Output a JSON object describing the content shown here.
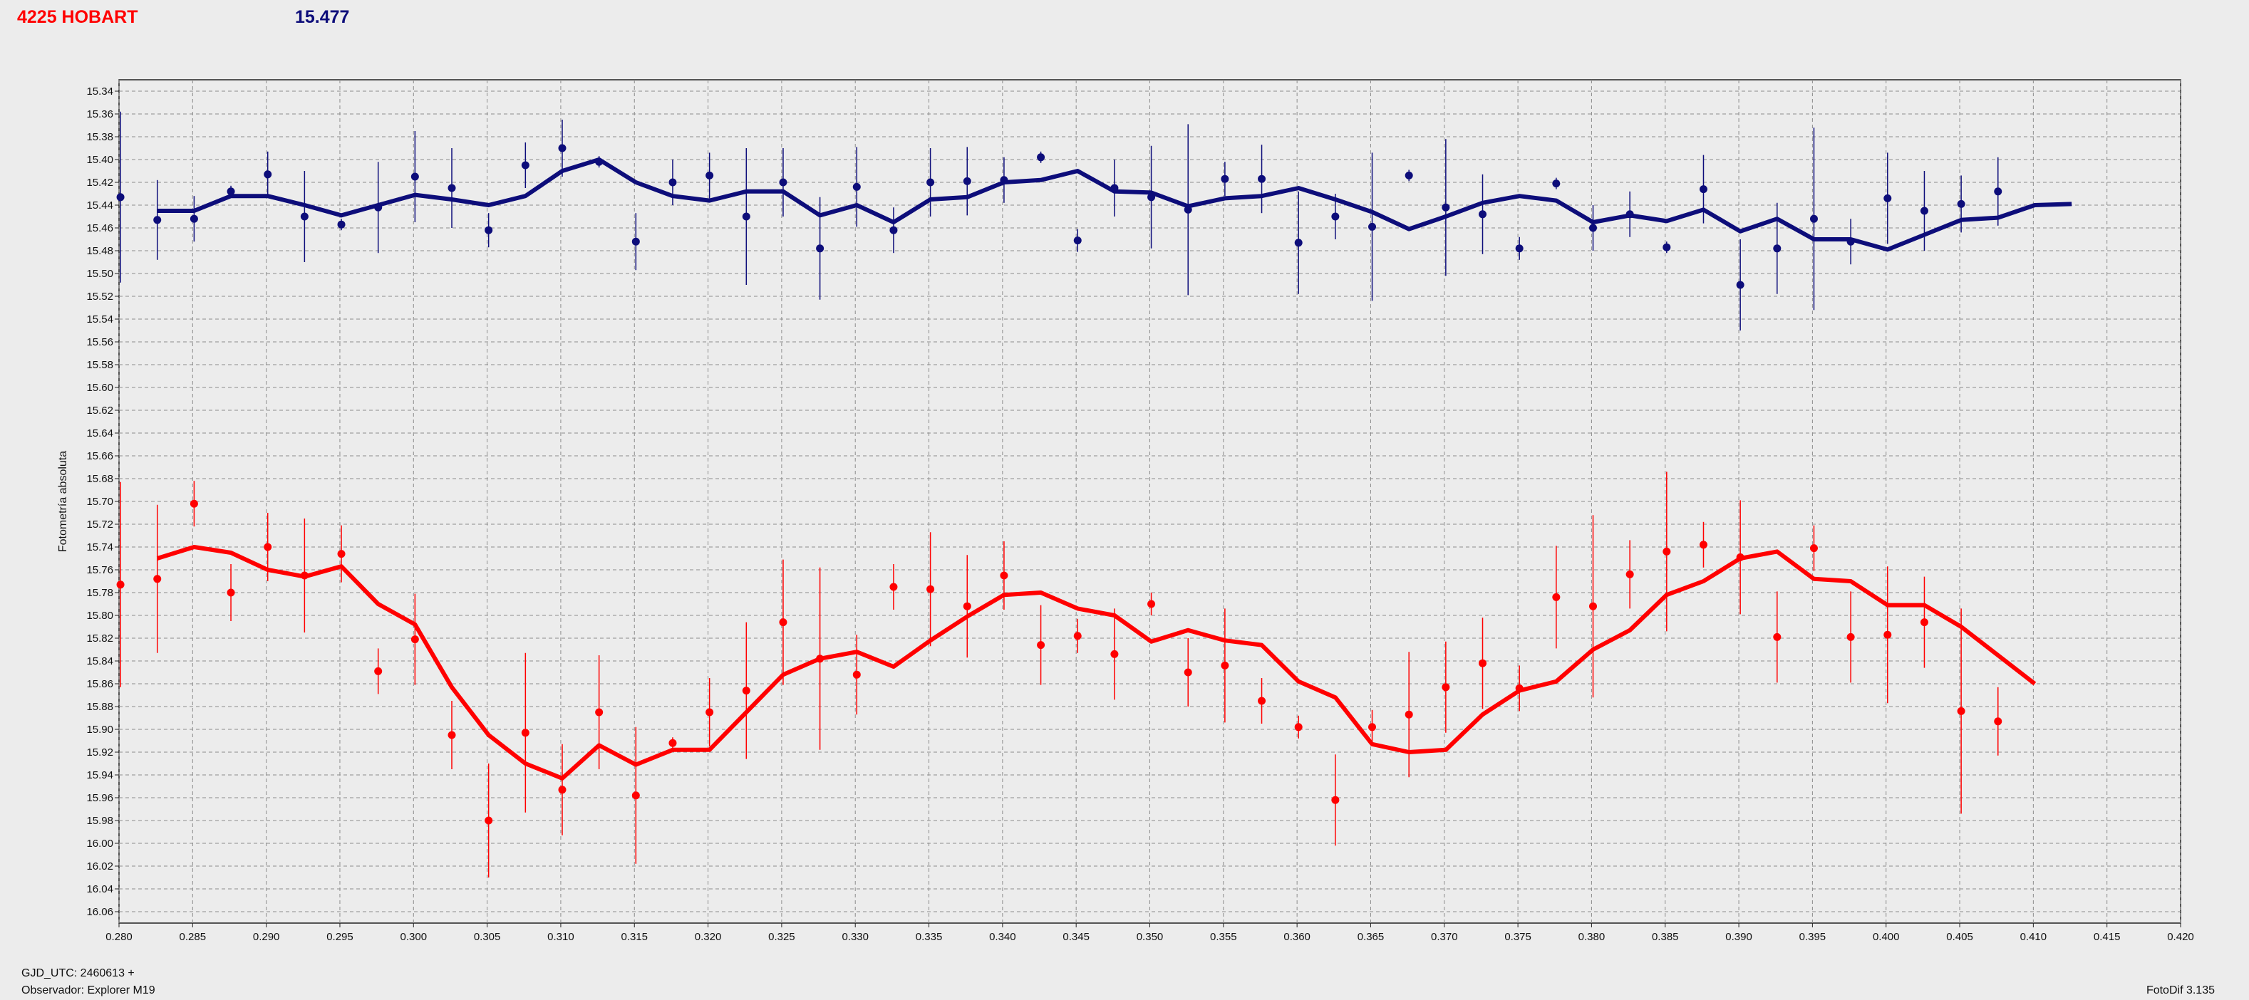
{
  "header": {
    "title": "4225 HOBART",
    "value": "15.477"
  },
  "footer": {
    "gjd": "GJD_UTC: 2460613 +",
    "observer": "Observador: Explorer M19",
    "version": "FotoDif 3.135"
  },
  "colors": {
    "series1": "#0d0d7a",
    "series2": "#ff0000",
    "grid": "#8c8c8c",
    "plot_bg": "#ececec"
  },
  "chart_data": {
    "type": "scatter",
    "ylabel": "Fotometría absoluta",
    "xlabel": "",
    "xlim": [
      0.28,
      0.42
    ],
    "ylim": [
      16.07,
      15.33
    ],
    "y_inverted": true,
    "grid": true,
    "x_ticks": [
      "0.280",
      "0.285",
      "0.290",
      "0.295",
      "0.300",
      "0.305",
      "0.310",
      "0.315",
      "0.320",
      "0.325",
      "0.330",
      "0.335",
      "0.340",
      "0.345",
      "0.350",
      "0.355",
      "0.360",
      "0.365",
      "0.370",
      "0.375",
      "0.380",
      "0.385",
      "0.390",
      "0.395",
      "0.400",
      "0.405",
      "0.410",
      "0.415",
      "0.420"
    ],
    "y_ticks": [
      "15.34",
      "15.36",
      "15.38",
      "15.40",
      "15.42",
      "15.44",
      "15.46",
      "15.48",
      "15.50",
      "15.52",
      "15.54",
      "15.56",
      "15.58",
      "15.60",
      "15.62",
      "15.64",
      "15.66",
      "15.68",
      "15.70",
      "15.72",
      "15.74",
      "15.76",
      "15.78",
      "15.80",
      "15.82",
      "15.84",
      "15.86",
      "15.88",
      "15.90",
      "15.92",
      "15.94",
      "15.96",
      "15.98",
      "16.00",
      "16.02",
      "16.04",
      "16.06"
    ],
    "series": [
      {
        "points": [
          {
            "x": 0.2801,
            "y": 15.433,
            "err": 0.075
          },
          {
            "x": 0.2826,
            "y": 15.453,
            "err": 0.035
          },
          {
            "x": 0.2851,
            "y": 15.452,
            "err": 0.02
          },
          {
            "x": 0.2876,
            "y": 15.428,
            "err": 0.005
          },
          {
            "x": 0.2901,
            "y": 15.413,
            "err": 0.02
          },
          {
            "x": 0.2926,
            "y": 15.45,
            "err": 0.04
          },
          {
            "x": 0.2951,
            "y": 15.457,
            "err": 0.005
          },
          {
            "x": 0.2976,
            "y": 15.442,
            "err": 0.04
          },
          {
            "x": 0.3001,
            "y": 15.415,
            "err": 0.04
          },
          {
            "x": 0.3026,
            "y": 15.425,
            "err": 0.035
          },
          {
            "x": 0.3051,
            "y": 15.462,
            "err": 0.015
          },
          {
            "x": 0.3076,
            "y": 15.405,
            "err": 0.02
          },
          {
            "x": 0.3101,
            "y": 15.39,
            "err": 0.025
          },
          {
            "x": 0.3126,
            "y": 15.402,
            "err": 0.005
          },
          {
            "x": 0.3151,
            "y": 15.472,
            "err": 0.025
          },
          {
            "x": 0.3176,
            "y": 15.42,
            "err": 0.02
          },
          {
            "x": 0.3201,
            "y": 15.414,
            "err": 0.02
          },
          {
            "x": 0.3226,
            "y": 15.45,
            "err": 0.06
          },
          {
            "x": 0.3251,
            "y": 15.42,
            "err": 0.03
          },
          {
            "x": 0.3276,
            "y": 15.478,
            "err": 0.045
          },
          {
            "x": 0.3301,
            "y": 15.424,
            "err": 0.035
          },
          {
            "x": 0.3326,
            "y": 15.462,
            "err": 0.02
          },
          {
            "x": 0.3351,
            "y": 15.42,
            "err": 0.03
          },
          {
            "x": 0.3376,
            "y": 15.419,
            "err": 0.03
          },
          {
            "x": 0.3401,
            "y": 15.418,
            "err": 0.02
          },
          {
            "x": 0.3426,
            "y": 15.398,
            "err": 0.005
          },
          {
            "x": 0.3451,
            "y": 15.471,
            "err": 0.01
          },
          {
            "x": 0.3476,
            "y": 15.425,
            "err": 0.025
          },
          {
            "x": 0.3501,
            "y": 15.433,
            "err": 0.045
          },
          {
            "x": 0.3526,
            "y": 15.444,
            "err": 0.075
          },
          {
            "x": 0.3551,
            "y": 15.417,
            "err": 0.015
          },
          {
            "x": 0.3576,
            "y": 15.417,
            "err": 0.03
          },
          {
            "x": 0.3601,
            "y": 15.473,
            "err": 0.045
          },
          {
            "x": 0.3626,
            "y": 15.45,
            "err": 0.02
          },
          {
            "x": 0.3651,
            "y": 15.459,
            "err": 0.065
          },
          {
            "x": 0.3676,
            "y": 15.414,
            "err": 0.005
          },
          {
            "x": 0.3701,
            "y": 15.442,
            "err": 0.06
          },
          {
            "x": 0.3726,
            "y": 15.448,
            "err": 0.035
          },
          {
            "x": 0.3751,
            "y": 15.478,
            "err": 0.01
          },
          {
            "x": 0.3776,
            "y": 15.421,
            "err": 0.005
          },
          {
            "x": 0.3801,
            "y": 15.46,
            "err": 0.02
          },
          {
            "x": 0.3826,
            "y": 15.448,
            "err": 0.02
          },
          {
            "x": 0.3851,
            "y": 15.477,
            "err": 0.005
          },
          {
            "x": 0.3876,
            "y": 15.426,
            "err": 0.03
          },
          {
            "x": 0.3901,
            "y": 15.51,
            "err": 0.04
          },
          {
            "x": 0.3926,
            "y": 15.478,
            "err": 0.04
          },
          {
            "x": 0.3951,
            "y": 15.452,
            "err": 0.08
          },
          {
            "x": 0.3976,
            "y": 15.472,
            "err": 0.02
          },
          {
            "x": 0.4001,
            "y": 15.434,
            "err": 0.04
          },
          {
            "x": 0.4026,
            "y": 15.445,
            "err": 0.035
          },
          {
            "x": 0.4051,
            "y": 15.439,
            "err": 0.025
          },
          {
            "x": 0.4076,
            "y": 15.428,
            "err": 0.03
          }
        ],
        "trend": [
          [
            0.2826,
            15.445
          ],
          [
            0.2851,
            15.445
          ],
          [
            0.2876,
            15.432
          ],
          [
            0.2901,
            15.432
          ],
          [
            0.2926,
            15.44
          ],
          [
            0.2951,
            15.449
          ],
          [
            0.2976,
            15.44
          ],
          [
            0.3001,
            15.431
          ],
          [
            0.3026,
            15.435
          ],
          [
            0.3051,
            15.44
          ],
          [
            0.3076,
            15.432
          ],
          [
            0.3101,
            15.41
          ],
          [
            0.3126,
            15.4
          ],
          [
            0.3151,
            15.42
          ],
          [
            0.3176,
            15.432
          ],
          [
            0.3201,
            15.436
          ],
          [
            0.3226,
            15.428
          ],
          [
            0.3251,
            15.428
          ],
          [
            0.3276,
            15.449
          ],
          [
            0.3301,
            15.44
          ],
          [
            0.3326,
            15.455
          ],
          [
            0.3351,
            15.435
          ],
          [
            0.3376,
            15.433
          ],
          [
            0.3401,
            15.42
          ],
          [
            0.3426,
            15.418
          ],
          [
            0.3451,
            15.41
          ],
          [
            0.3476,
            15.428
          ],
          [
            0.3501,
            15.429
          ],
          [
            0.3526,
            15.441
          ],
          [
            0.3551,
            15.434
          ],
          [
            0.3576,
            15.432
          ],
          [
            0.3601,
            15.425
          ],
          [
            0.3626,
            15.435
          ],
          [
            0.3651,
            15.446
          ],
          [
            0.3676,
            15.461
          ],
          [
            0.3701,
            15.45
          ],
          [
            0.3726,
            15.438
          ],
          [
            0.3751,
            15.432
          ],
          [
            0.3776,
            15.436
          ],
          [
            0.3801,
            15.455
          ],
          [
            0.3826,
            15.449
          ],
          [
            0.3851,
            15.454
          ],
          [
            0.3876,
            15.444
          ],
          [
            0.3901,
            15.463
          ],
          [
            0.3926,
            15.452
          ],
          [
            0.3951,
            15.47
          ],
          [
            0.3976,
            15.47
          ],
          [
            0.4001,
            15.479
          ],
          [
            0.4026,
            15.466
          ],
          [
            0.4051,
            15.453
          ],
          [
            0.4076,
            15.451
          ],
          [
            0.4101,
            15.44
          ],
          [
            0.4126,
            15.439
          ]
        ]
      },
      {
        "points": [
          {
            "x": 0.2801,
            "y": 15.773,
            "err": 0.09
          },
          {
            "x": 0.2826,
            "y": 15.768,
            "err": 0.065
          },
          {
            "x": 0.2851,
            "y": 15.702,
            "err": 0.02
          },
          {
            "x": 0.2876,
            "y": 15.78,
            "err": 0.025
          },
          {
            "x": 0.2901,
            "y": 15.74,
            "err": 0.03
          },
          {
            "x": 0.2926,
            "y": 15.765,
            "err": 0.05
          },
          {
            "x": 0.2951,
            "y": 15.746,
            "err": 0.025
          },
          {
            "x": 0.2976,
            "y": 15.849,
            "err": 0.02
          },
          {
            "x": 0.3001,
            "y": 15.821,
            "err": 0.04
          },
          {
            "x": 0.3026,
            "y": 15.905,
            "err": 0.03
          },
          {
            "x": 0.3051,
            "y": 15.98,
            "err": 0.05
          },
          {
            "x": 0.3076,
            "y": 15.903,
            "err": 0.07
          },
          {
            "x": 0.3101,
            "y": 15.953,
            "err": 0.04
          },
          {
            "x": 0.3126,
            "y": 15.885,
            "err": 0.05
          },
          {
            "x": 0.3151,
            "y": 15.958,
            "err": 0.06
          },
          {
            "x": 0.3176,
            "y": 15.912,
            "err": 0.005
          },
          {
            "x": 0.3201,
            "y": 15.885,
            "err": 0.03
          },
          {
            "x": 0.3226,
            "y": 15.866,
            "err": 0.06
          },
          {
            "x": 0.3251,
            "y": 15.806,
            "err": 0.055
          },
          {
            "x": 0.3276,
            "y": 15.838,
            "err": 0.08
          },
          {
            "x": 0.3301,
            "y": 15.852,
            "err": 0.035
          },
          {
            "x": 0.3326,
            "y": 15.775,
            "err": 0.02
          },
          {
            "x": 0.3351,
            "y": 15.777,
            "err": 0.05
          },
          {
            "x": 0.3376,
            "y": 15.792,
            "err": 0.045
          },
          {
            "x": 0.3401,
            "y": 15.765,
            "err": 0.03
          },
          {
            "x": 0.3426,
            "y": 15.826,
            "err": 0.035
          },
          {
            "x": 0.3451,
            "y": 15.818,
            "err": 0.015
          },
          {
            "x": 0.3476,
            "y": 15.834,
            "err": 0.04
          },
          {
            "x": 0.3501,
            "y": 15.79,
            "err": 0.01
          },
          {
            "x": 0.3526,
            "y": 15.85,
            "err": 0.03
          },
          {
            "x": 0.3551,
            "y": 15.844,
            "err": 0.05
          },
          {
            "x": 0.3576,
            "y": 15.875,
            "err": 0.02
          },
          {
            "x": 0.3601,
            "y": 15.898,
            "err": 0.01
          },
          {
            "x": 0.3626,
            "y": 15.962,
            "err": 0.04
          },
          {
            "x": 0.3651,
            "y": 15.898,
            "err": 0.015
          },
          {
            "x": 0.3676,
            "y": 15.887,
            "err": 0.055
          },
          {
            "x": 0.3701,
            "y": 15.863,
            "err": 0.04
          },
          {
            "x": 0.3726,
            "y": 15.842,
            "err": 0.04
          },
          {
            "x": 0.3751,
            "y": 15.864,
            "err": 0.02
          },
          {
            "x": 0.3776,
            "y": 15.784,
            "err": 0.045
          },
          {
            "x": 0.3801,
            "y": 15.792,
            "err": 0.08
          },
          {
            "x": 0.3826,
            "y": 15.764,
            "err": 0.03
          },
          {
            "x": 0.3851,
            "y": 15.744,
            "err": 0.07
          },
          {
            "x": 0.3876,
            "y": 15.738,
            "err": 0.02
          },
          {
            "x": 0.3901,
            "y": 15.749,
            "err": 0.05
          },
          {
            "x": 0.3926,
            "y": 15.819,
            "err": 0.04
          },
          {
            "x": 0.3951,
            "y": 15.741,
            "err": 0.02
          },
          {
            "x": 0.3976,
            "y": 15.819,
            "err": 0.04
          },
          {
            "x": 0.4001,
            "y": 15.817,
            "err": 0.06
          },
          {
            "x": 0.4026,
            "y": 15.806,
            "err": 0.04
          },
          {
            "x": 0.4051,
            "y": 15.884,
            "err": 0.09
          },
          {
            "x": 0.4076,
            "y": 15.893,
            "err": 0.03
          }
        ],
        "trend": [
          [
            0.2826,
            15.75
          ],
          [
            0.2851,
            15.74
          ],
          [
            0.2876,
            15.745
          ],
          [
            0.2901,
            15.76
          ],
          [
            0.2926,
            15.766
          ],
          [
            0.2951,
            15.757
          ],
          [
            0.2976,
            15.79
          ],
          [
            0.3001,
            15.808
          ],
          [
            0.3026,
            15.863
          ],
          [
            0.3051,
            15.905
          ],
          [
            0.3076,
            15.93
          ],
          [
            0.3101,
            15.943
          ],
          [
            0.3126,
            15.914
          ],
          [
            0.3151,
            15.931
          ],
          [
            0.3176,
            15.918
          ],
          [
            0.3201,
            15.918
          ],
          [
            0.3226,
            15.885
          ],
          [
            0.3251,
            15.852
          ],
          [
            0.3276,
            15.838
          ],
          [
            0.3301,
            15.832
          ],
          [
            0.3326,
            15.845
          ],
          [
            0.3351,
            15.822
          ],
          [
            0.3376,
            15.801
          ],
          [
            0.3401,
            15.782
          ],
          [
            0.3426,
            15.78
          ],
          [
            0.3451,
            15.794
          ],
          [
            0.3476,
            15.8
          ],
          [
            0.3501,
            15.823
          ],
          [
            0.3526,
            15.813
          ],
          [
            0.3551,
            15.822
          ],
          [
            0.3576,
            15.826
          ],
          [
            0.3601,
            15.858
          ],
          [
            0.3626,
            15.872
          ],
          [
            0.3651,
            15.913
          ],
          [
            0.3676,
            15.92
          ],
          [
            0.3701,
            15.918
          ],
          [
            0.3726,
            15.887
          ],
          [
            0.3751,
            15.866
          ],
          [
            0.3776,
            15.858
          ],
          [
            0.3801,
            15.83
          ],
          [
            0.3826,
            15.813
          ],
          [
            0.3851,
            15.782
          ],
          [
            0.3876,
            15.77
          ],
          [
            0.3901,
            15.75
          ],
          [
            0.3926,
            15.744
          ],
          [
            0.3951,
            15.768
          ],
          [
            0.3976,
            15.77
          ],
          [
            0.4001,
            15.791
          ],
          [
            0.4026,
            15.791
          ],
          [
            0.4051,
            15.81
          ],
          [
            0.4076,
            15.835
          ],
          [
            0.4101,
            15.86
          ]
        ]
      }
    ]
  }
}
